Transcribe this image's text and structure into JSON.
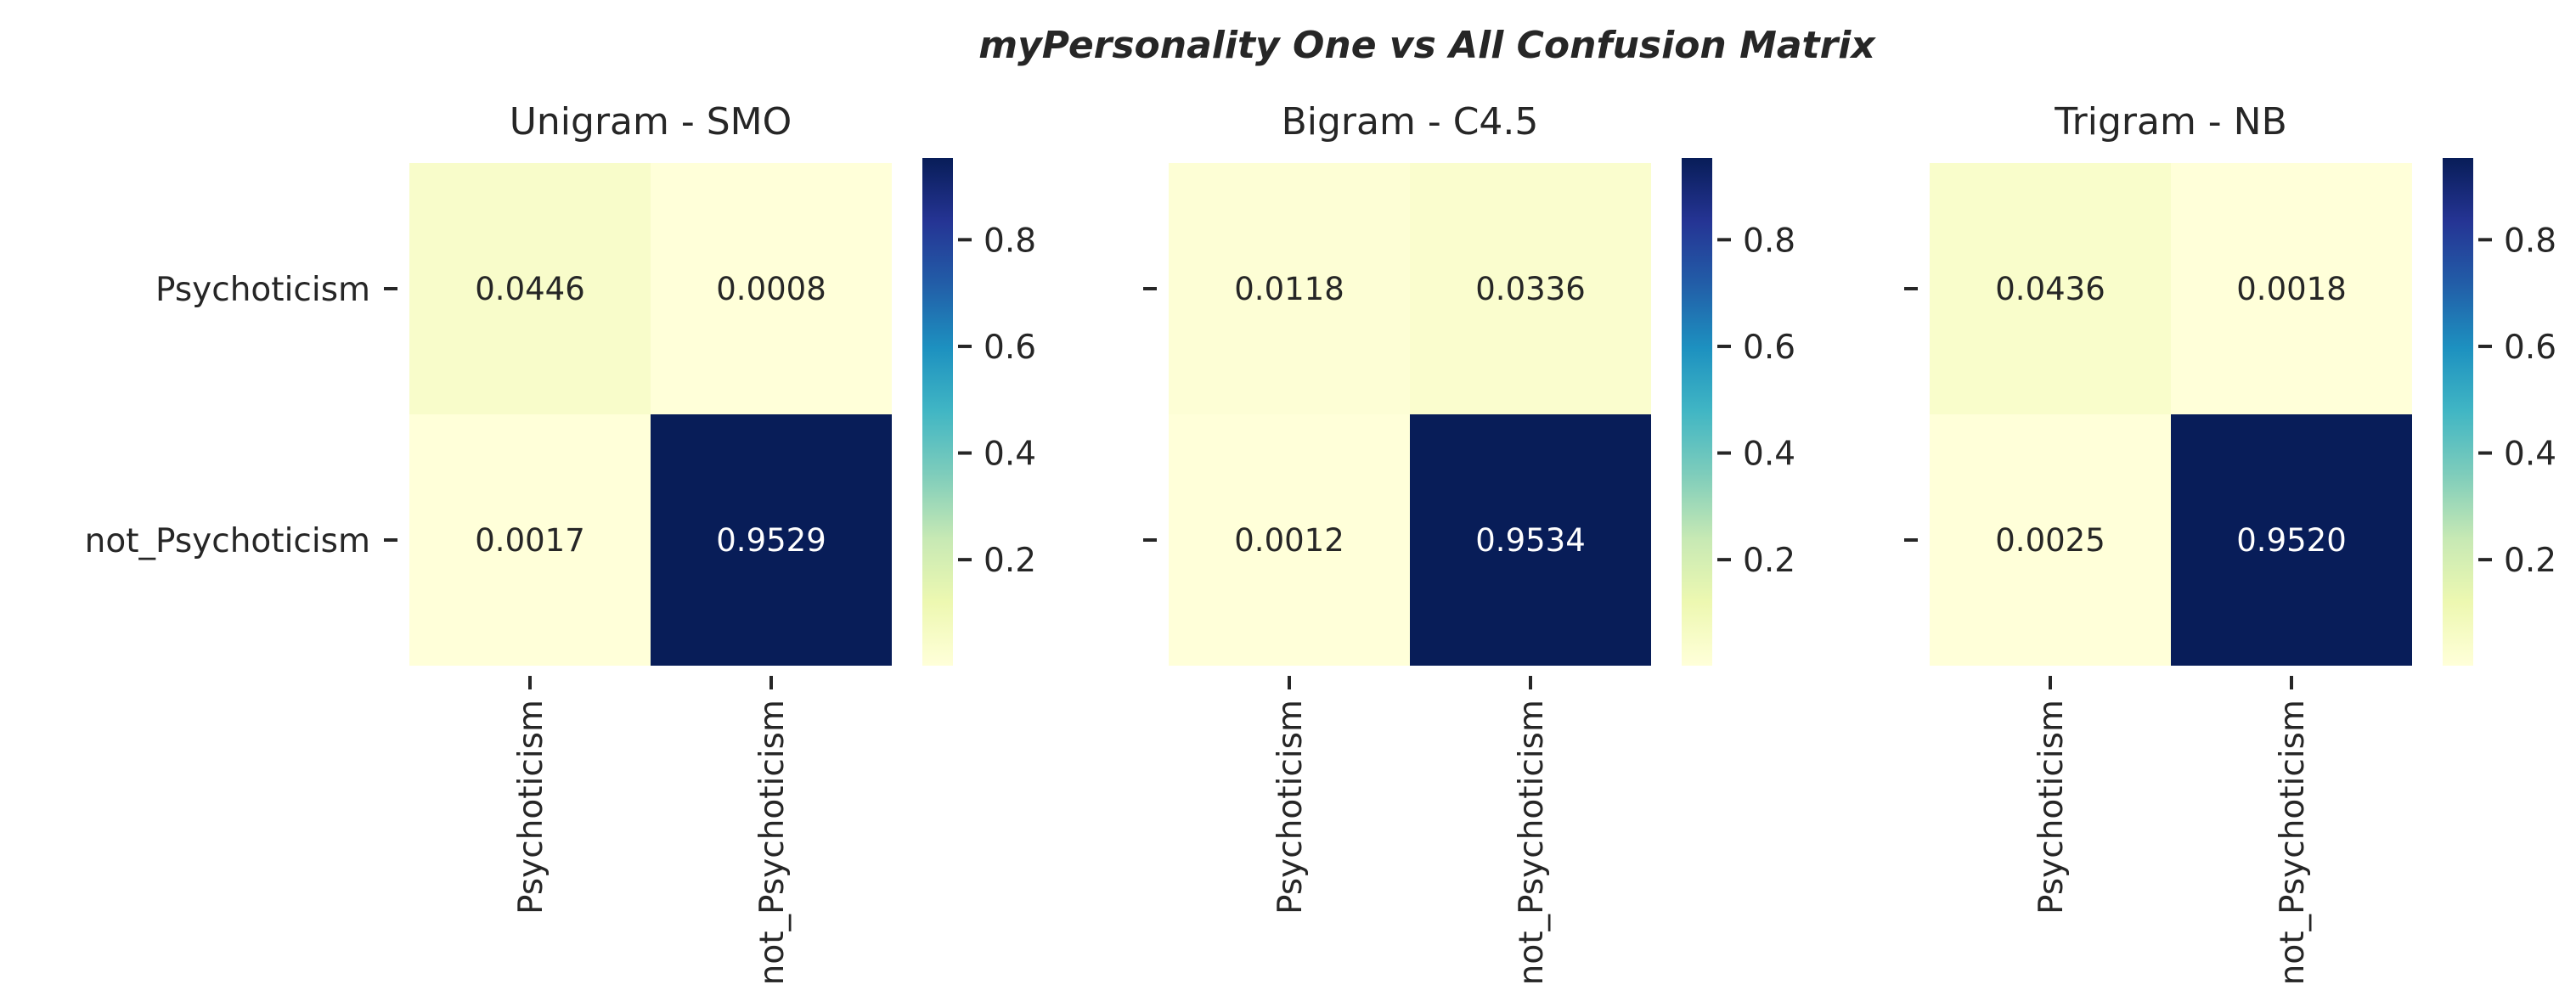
{
  "chart_data": {
    "type": "heatmap",
    "title": "myPersonality One vs All Confusion Matrix",
    "colormap": "YlGnBu",
    "colors": {
      "low": "#ffffd9",
      "mid": "#41b6c4",
      "high": "#081d58",
      "text_dark": "#262626",
      "text_light": "#ffffff"
    },
    "colorbar": {
      "range": [
        0.0012,
        0.9534
      ],
      "ticks": [
        "0.2",
        "0.4",
        "0.6",
        "0.8"
      ]
    },
    "panels": [
      {
        "title": "Unigram - SMO",
        "row_labels": [
          "Psychoticism",
          "not_Psychoticism"
        ],
        "col_labels": [
          "Psychoticism",
          "not_Psychoticism"
        ],
        "show_row_labels": true,
        "values": [
          [
            0.0446,
            0.0008
          ],
          [
            0.0017,
            0.9529
          ]
        ],
        "cell_text": [
          [
            "0.0446",
            "0.0008"
          ],
          [
            "0.0017",
            "0.9529"
          ]
        ]
      },
      {
        "title": "Bigram - C4.5",
        "row_labels": [
          "Psychoticism",
          "not_Psychoticism"
        ],
        "col_labels": [
          "Psychoticism",
          "not_Psychoticism"
        ],
        "show_row_labels": false,
        "values": [
          [
            0.0118,
            0.0336
          ],
          [
            0.0012,
            0.9534
          ]
        ],
        "cell_text": [
          [
            "0.0118",
            "0.0336"
          ],
          [
            "0.0012",
            "0.9534"
          ]
        ]
      },
      {
        "title": "Trigram - NB",
        "row_labels": [
          "Psychoticism",
          "not_Psychoticism"
        ],
        "col_labels": [
          "Psychoticism",
          "not_Psychoticism"
        ],
        "show_row_labels": false,
        "values": [
          [
            0.0436,
            0.0018
          ],
          [
            0.0025,
            0.952
          ]
        ],
        "cell_text": [
          [
            "0.0436",
            "0.0018"
          ],
          [
            "0.0025",
            "0.9520"
          ]
        ]
      }
    ]
  }
}
